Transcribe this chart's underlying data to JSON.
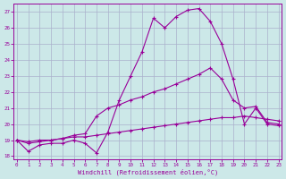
{
  "xlabel": "Windchill (Refroidissement éolien,°C)",
  "xlim": [
    -0.3,
    23.3
  ],
  "ylim": [
    17.8,
    27.5
  ],
  "xticks": [
    0,
    1,
    2,
    3,
    4,
    5,
    6,
    7,
    8,
    9,
    10,
    11,
    12,
    13,
    14,
    15,
    16,
    17,
    18,
    19,
    20,
    21,
    22,
    23
  ],
  "yticks": [
    18,
    19,
    20,
    21,
    22,
    23,
    24,
    25,
    26,
    27
  ],
  "background_color": "#cce8e8",
  "grid_color": "#aab0cc",
  "line_color": "#990099",
  "line1_x": [
    0,
    1,
    2,
    3,
    4,
    5,
    6,
    7,
    8,
    9,
    10,
    11,
    12,
    13,
    14,
    15,
    16,
    17,
    18,
    19,
    20,
    21,
    22,
    23
  ],
  "line1_y": [
    19.0,
    18.3,
    18.7,
    18.8,
    18.8,
    19.0,
    18.8,
    18.2,
    19.5,
    21.5,
    23.0,
    24.5,
    26.6,
    26.0,
    26.7,
    27.1,
    27.2,
    26.4,
    25.0,
    22.8,
    20.0,
    21.0,
    20.0,
    19.9
  ],
  "line2_x": [
    0,
    1,
    2,
    3,
    4,
    5,
    6,
    7,
    8,
    9,
    10,
    11,
    12,
    13,
    14,
    15,
    16,
    17,
    18,
    19,
    20,
    21,
    22,
    23
  ],
  "line2_y": [
    19.0,
    18.8,
    18.9,
    19.0,
    19.1,
    19.3,
    19.4,
    20.5,
    21.0,
    21.2,
    21.5,
    21.7,
    22.0,
    22.2,
    22.5,
    22.8,
    23.1,
    23.5,
    22.8,
    21.5,
    21.0,
    21.1,
    20.1,
    20.0
  ],
  "line3_x": [
    0,
    1,
    2,
    3,
    4,
    5,
    6,
    7,
    8,
    9,
    10,
    11,
    12,
    13,
    14,
    15,
    16,
    17,
    18,
    19,
    20,
    21,
    22,
    23
  ],
  "line3_y": [
    19.0,
    18.9,
    19.0,
    19.0,
    19.1,
    19.2,
    19.2,
    19.3,
    19.4,
    19.5,
    19.6,
    19.7,
    19.8,
    19.9,
    20.0,
    20.1,
    20.2,
    20.3,
    20.4,
    20.4,
    20.5,
    20.4,
    20.3,
    20.2
  ]
}
